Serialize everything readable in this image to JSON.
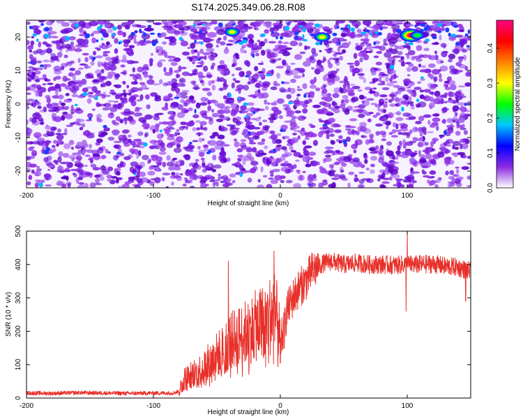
{
  "title": "S174.2025.349.06.28.R08",
  "chart_data": [
    {
      "type": "heatmap",
      "name": "spectrogram",
      "xlabel": "Height of straight line (km)",
      "ylabel": "Frequency (Hz)",
      "xlim": [
        -200,
        150
      ],
      "ylim": [
        -25,
        25
      ],
      "xticks": [
        -200,
        -100,
        0,
        100
      ],
      "xtick_labels": [
        "-200",
        "-100",
        "0",
        "100"
      ],
      "yticks": [
        20,
        10,
        0,
        -10,
        -20
      ],
      "ytick_labels": [
        "20",
        "10",
        "0",
        "-10",
        "-20"
      ],
      "colorbar": {
        "label": "Normalized spectral amplitude",
        "range": [
          0,
          0.48
        ],
        "ticks": [
          0.0,
          0.1,
          0.2,
          0.3,
          0.4
        ],
        "tick_labels": [
          "0.0",
          "0.1",
          "0.2",
          "0.3",
          "0.4"
        ],
        "colors": [
          "#ffffff",
          "#8a2be2",
          "#0000ff",
          "#00c8ff",
          "#00ff00",
          "#ffff00",
          "#ff8000",
          "#ff0000",
          "#ff0080"
        ]
      },
      "hotspots": [
        {
          "x": 103,
          "y": 20.5,
          "value": 0.47
        },
        {
          "x": 33,
          "y": 20,
          "value": 0.27
        },
        {
          "x": -38,
          "y": 21.5,
          "value": 0.24
        },
        {
          "x": 108,
          "y": 20.5,
          "value": 0.22
        }
      ]
    },
    {
      "type": "line",
      "name": "snr",
      "xlabel": "Height of straight line (km)",
      "ylabel": "SNR (10 * v/v)",
      "xlim": [
        -200,
        150
      ],
      "ylim": [
        0,
        500
      ],
      "xticks": [
        -200,
        -100,
        0,
        100
      ],
      "xtick_labels": [
        "-200",
        "-100",
        "0",
        "100"
      ],
      "yticks": [
        0,
        100,
        200,
        300,
        400,
        500
      ],
      "ytick_labels": [
        "0",
        "100",
        "200",
        "300",
        "400",
        "500"
      ],
      "color": "#e8302a",
      "series": [
        {
          "name": "SNR",
          "x": [
            -200,
            -180,
            -160,
            -140,
            -120,
            -100,
            -85,
            -80,
            -78,
            -75,
            -70,
            -65,
            -60,
            -55,
            -50,
            -45,
            -42,
            -40,
            -35,
            -30,
            -25,
            -20,
            -15,
            -10,
            -5,
            -3,
            -1,
            0,
            3,
            5,
            10,
            15,
            20,
            25,
            30,
            35,
            40,
            45,
            50,
            60,
            70,
            80,
            90,
            100,
            110,
            120,
            130,
            140,
            145,
            150
          ],
          "y": [
            15,
            14,
            16,
            15,
            14,
            15,
            15,
            20,
            40,
            60,
            70,
            80,
            95,
            110,
            130,
            145,
            160,
            170,
            180,
            190,
            200,
            215,
            225,
            240,
            260,
            240,
            200,
            170,
            200,
            260,
            300,
            330,
            350,
            380,
            395,
            405,
            410,
            405,
            400,
            405,
            400,
            400,
            398,
            400,
            400,
            402,
            395,
            392,
            385,
            380
          ]
        }
      ],
      "spikes": [
        {
          "x": -41,
          "y": 410
        },
        {
          "x": -5,
          "y": 440
        },
        {
          "x": 0,
          "y": 105
        },
        {
          "x": 100,
          "y": 500
        },
        {
          "x": 99,
          "y": 260
        },
        {
          "x": 146,
          "y": 290
        }
      ]
    }
  ]
}
